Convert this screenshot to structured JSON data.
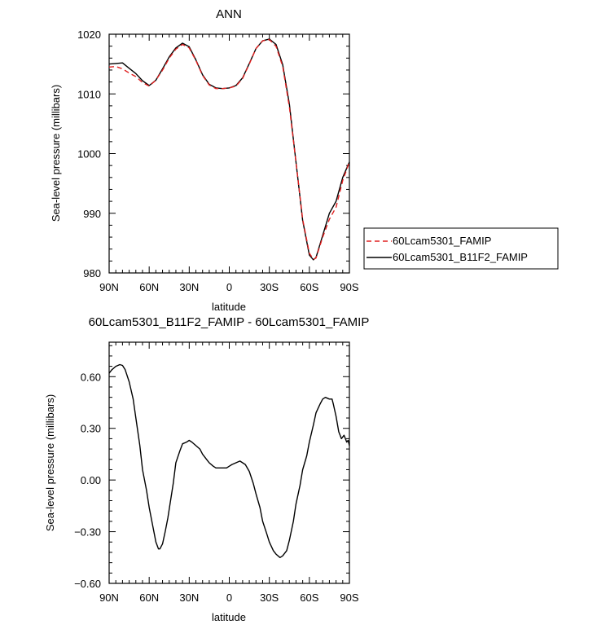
{
  "chart_data": [
    {
      "type": "line",
      "title": "ANN",
      "xlabel": "latitude",
      "ylabel": "Sea-level pressure (millibars)",
      "xlim": [
        90,
        -90
      ],
      "ylim": [
        980,
        1020
      ],
      "x_ticks": [
        90,
        60,
        30,
        0,
        -30,
        -60,
        -90
      ],
      "x_tick_labels": [
        "90N",
        "60N",
        "30N",
        "0",
        "30S",
        "60S",
        "90S"
      ],
      "y_ticks": [
        980,
        990,
        1000,
        1010,
        1020
      ],
      "y_tick_labels": [
        "980",
        "990",
        "1000",
        "1010",
        "1020"
      ],
      "legend_position": "right",
      "series": [
        {
          "name": "60Lcam5301_FAMIP",
          "color": "#e02020",
          "dash": "dashed",
          "x": [
            90,
            85,
            80,
            75,
            70,
            65,
            60,
            55,
            50,
            45,
            40,
            35,
            30,
            25,
            20,
            15,
            10,
            5,
            0,
            -5,
            -10,
            -15,
            -20,
            -25,
            -30,
            -35,
            -40,
            -45,
            -50,
            -55,
            -60,
            -63,
            -65,
            -70,
            -75,
            -80,
            -85,
            -90
          ],
          "values": [
            1014.5,
            1014.6,
            1014.2,
            1013.5,
            1012.9,
            1011.9,
            1011.3,
            1012.3,
            1014.0,
            1016.0,
            1017.5,
            1018.3,
            1017.7,
            1015.6,
            1013.1,
            1011.5,
            1010.9,
            1010.9,
            1011.0,
            1011.3,
            1012.6,
            1015.0,
            1017.6,
            1018.9,
            1019.1,
            1018.0,
            1014.6,
            1007.8,
            998.6,
            989.0,
            983.3,
            982.3,
            982.5,
            986.0,
            989.0,
            991.0,
            995.5,
            998.6
          ]
        },
        {
          "name": "60Lcam5301_B11F2_FAMIP",
          "color": "#000000",
          "dash": "solid",
          "x": [
            90,
            85,
            80,
            75,
            70,
            65,
            60,
            55,
            50,
            45,
            40,
            35,
            30,
            25,
            20,
            15,
            10,
            5,
            0,
            -5,
            -10,
            -15,
            -20,
            -25,
            -30,
            -35,
            -40,
            -45,
            -50,
            -55,
            -60,
            -63,
            -65,
            -70,
            -75,
            -80,
            -85,
            -90
          ],
          "values": [
            1015.0,
            1015.1,
            1015.2,
            1014.3,
            1013.4,
            1012.2,
            1011.4,
            1012.3,
            1014.2,
            1016.2,
            1017.7,
            1018.5,
            1017.9,
            1015.7,
            1013.2,
            1011.6,
            1011.0,
            1010.9,
            1011.0,
            1011.4,
            1012.7,
            1015.1,
            1017.6,
            1018.9,
            1019.2,
            1018.3,
            1014.9,
            1008.3,
            998.6,
            988.8,
            983.0,
            982.2,
            982.6,
            986.3,
            990.0,
            992.0,
            996.0,
            998.6
          ]
        }
      ]
    },
    {
      "type": "line",
      "title": "60Lcam5301_B11F2_FAMIP - 60Lcam5301_FAMIP",
      "xlabel": "latitude",
      "ylabel": "Sea-level pressure (millibars)",
      "xlim": [
        90,
        -90
      ],
      "ylim": [
        -0.6,
        0.8
      ],
      "x_ticks": [
        90,
        60,
        30,
        0,
        -30,
        -60,
        -90
      ],
      "x_tick_labels": [
        "90N",
        "60N",
        "30N",
        "0",
        "30S",
        "60S",
        "90S"
      ],
      "y_ticks": [
        -0.6,
        -0.3,
        0.0,
        0.3,
        0.6
      ],
      "y_tick_labels": [
        "−0.60",
        "−0.30",
        "0.00",
        "0.30",
        "0.60"
      ],
      "series": [
        {
          "color": "#000000",
          "dash": "solid",
          "x": [
            90,
            88,
            85,
            82,
            80,
            78,
            75,
            72,
            70,
            67,
            65,
            62,
            60,
            57,
            55,
            53,
            52,
            50,
            48,
            46,
            44,
            42,
            40,
            37,
            35,
            32,
            30,
            28,
            25,
            22,
            20,
            17,
            15,
            12,
            10,
            7,
            5,
            2,
            0,
            -2,
            -5,
            -8,
            -10,
            -12,
            -15,
            -18,
            -20,
            -23,
            -25,
            -28,
            -30,
            -33,
            -35,
            -38,
            -40,
            -43,
            -45,
            -48,
            -50,
            -53,
            -55,
            -58,
            -60,
            -63,
            -65,
            -68,
            -70,
            -72,
            -75,
            -77,
            -78,
            -80,
            -82,
            -84,
            -85,
            -86,
            -87,
            -88,
            -89,
            -90
          ],
          "values": [
            0.62,
            0.64,
            0.66,
            0.67,
            0.665,
            0.64,
            0.57,
            0.47,
            0.36,
            0.2,
            0.06,
            -0.06,
            -0.16,
            -0.28,
            -0.36,
            -0.4,
            -0.4,
            -0.37,
            -0.3,
            -0.22,
            -0.12,
            -0.02,
            0.1,
            0.17,
            0.21,
            0.22,
            0.23,
            0.22,
            0.2,
            0.18,
            0.15,
            0.12,
            0.1,
            0.08,
            0.07,
            0.07,
            0.07,
            0.07,
            0.08,
            0.09,
            0.1,
            0.11,
            0.1,
            0.09,
            0.05,
            -0.02,
            -0.08,
            -0.16,
            -0.24,
            -0.31,
            -0.36,
            -0.41,
            -0.43,
            -0.45,
            -0.44,
            -0.41,
            -0.35,
            -0.24,
            -0.14,
            -0.03,
            0.06,
            0.14,
            0.22,
            0.32,
            0.39,
            0.44,
            0.47,
            0.48,
            0.47,
            0.47,
            0.44,
            0.37,
            0.28,
            0.24,
            0.25,
            0.26,
            0.24,
            0.22,
            0.23,
            0.2
          ]
        }
      ]
    }
  ]
}
